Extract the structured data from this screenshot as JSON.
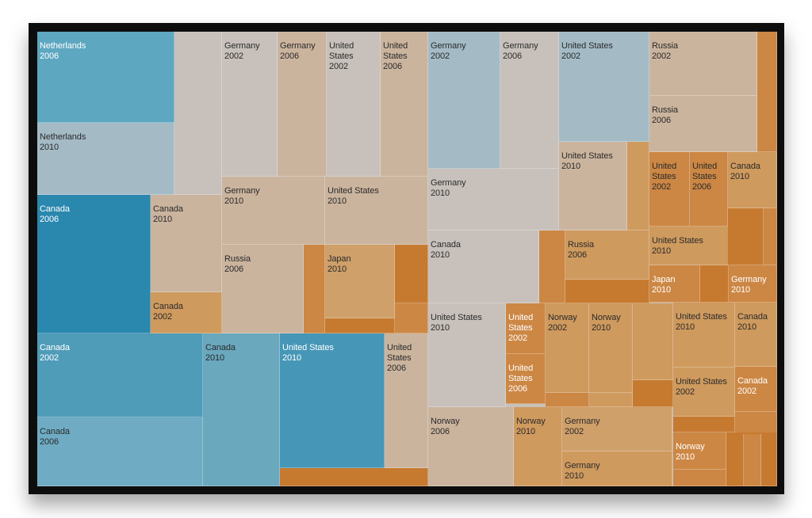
{
  "colors": {
    "frame": "#0d0d0d",
    "blue_dark": "#2a87ad",
    "blue_mid": "#4a9ab9",
    "blue_light": "#a4bbc6",
    "gray": "#c8c1bb",
    "tan": "#cbb49e",
    "orange_light": "#cf9a5e",
    "orange": "#cc8744",
    "orange_dark": "#c67a30"
  },
  "chart_data": {
    "type": "treemap",
    "title": "",
    "cells": [
      {
        "lines": [
          "Netherlands",
          "2006"
        ],
        "color": "#5ea7c0",
        "text": "light"
      },
      {
        "lines": [
          "Netherlands",
          "2010"
        ],
        "color": "#a4bbc6",
        "text": "dark"
      },
      {
        "lines": [
          "Canada",
          "2006"
        ],
        "color": "#2a87ad",
        "text": "light"
      },
      {
        "lines": [
          "Canada",
          "2010"
        ],
        "color": "#cbb49e",
        "text": "dark"
      },
      {
        "lines": [
          "Canada",
          "2002"
        ],
        "color": "#cf9a5e",
        "text": "dark"
      },
      {
        "lines": [
          "Canada",
          "2002"
        ],
        "color": "#4f9cb9",
        "text": "light"
      },
      {
        "lines": [
          "Canada",
          "2006"
        ],
        "color": "#6facc3",
        "text": "dark"
      },
      {
        "lines": [
          "Canada",
          "2010"
        ],
        "color": "#6aa8be",
        "text": "dark"
      },
      {
        "lines": [
          "United States",
          "2010"
        ],
        "color": "#4697b7",
        "text": "light"
      },
      {
        "lines": [
          "United",
          "States",
          "2006"
        ],
        "color": "#cbb49e",
        "text": "dark"
      },
      {
        "lines": [
          "Germany",
          "2002"
        ],
        "color": "#c8c1bb",
        "text": "dark"
      },
      {
        "lines": [
          "Germany",
          "2006"
        ],
        "color": "#cbb49e",
        "text": "dark"
      },
      {
        "lines": [
          "United",
          "States",
          "2002"
        ],
        "color": "#c8c1bb",
        "text": "dark"
      },
      {
        "lines": [
          "United",
          "States",
          "2006"
        ],
        "color": "#cbb49e",
        "text": "dark"
      },
      {
        "lines": [
          "Germany",
          "2010"
        ],
        "color": "#cbb49e",
        "text": "dark"
      },
      {
        "lines": [
          "United States",
          "2010"
        ],
        "color": "#cbb49e",
        "text": "dark"
      },
      {
        "lines": [
          "Russia",
          "2006"
        ],
        "color": "#cbb49e",
        "text": "dark"
      },
      {
        "lines": [
          "Japan",
          "2010"
        ],
        "color": "#cfa06a",
        "text": "dark"
      },
      {
        "lines": [
          "Germany",
          "2002"
        ],
        "color": "#a4bbc6",
        "text": "dark"
      },
      {
        "lines": [
          "Germany",
          "2006"
        ],
        "color": "#c8c1bb",
        "text": "dark"
      },
      {
        "lines": [
          "United States",
          "2002"
        ],
        "color": "#a4bbc6",
        "text": "dark"
      },
      {
        "lines": [
          "Germany",
          "2010"
        ],
        "color": "#c8c1bb",
        "text": "dark"
      },
      {
        "lines": [
          "United States",
          "2010"
        ],
        "color": "#cbb49e",
        "text": "dark"
      },
      {
        "lines": [
          "Canada",
          "2010"
        ],
        "color": "#c8c1bb",
        "text": "dark"
      },
      {
        "lines": [
          "Russia",
          "2006"
        ],
        "color": "#cf9a5e",
        "text": "dark"
      },
      {
        "lines": [
          "United States",
          "2010"
        ],
        "color": "#c8c1bb",
        "text": "dark"
      },
      {
        "lines": [
          "United",
          "States",
          "2002"
        ],
        "color": "#cc8744",
        "text": "light"
      },
      {
        "lines": [
          "United",
          "States",
          "2006"
        ],
        "color": "#cc8744",
        "text": "light"
      },
      {
        "lines": [
          "Norway",
          "2002"
        ],
        "color": "#cf9a5e",
        "text": "dark"
      },
      {
        "lines": [
          "Norway",
          "2010"
        ],
        "color": "#cf9a5e",
        "text": "dark"
      },
      {
        "lines": [
          "Norway",
          "2006"
        ],
        "color": "#cbb49e",
        "text": "dark"
      },
      {
        "lines": [
          "Norway",
          "2010"
        ],
        "color": "#cf9a5e",
        "text": "dark"
      },
      {
        "lines": [
          "Germany",
          "2002"
        ],
        "color": "#cfa06a",
        "text": "dark"
      },
      {
        "lines": [
          "Germany",
          "2010"
        ],
        "color": "#cf9a5e",
        "text": "dark"
      },
      {
        "lines": [
          "Russia",
          "2002"
        ],
        "color": "#cbb49e",
        "text": "dark"
      },
      {
        "lines": [
          "Russia",
          "2006"
        ],
        "color": "#cbb49e",
        "text": "dark"
      },
      {
        "lines": [
          "United",
          "States",
          "2002"
        ],
        "color": "#cc8744",
        "text": "dark"
      },
      {
        "lines": [
          "United",
          "States",
          "2006"
        ],
        "color": "#cc8744",
        "text": "dark"
      },
      {
        "lines": [
          "Canada",
          "2010"
        ],
        "color": "#cf9a5e",
        "text": "dark"
      },
      {
        "lines": [
          "United States",
          "2010"
        ],
        "color": "#cf9a5e",
        "text": "dark"
      },
      {
        "lines": [
          "Japan",
          "2010"
        ],
        "color": "#cc8744",
        "text": "light"
      },
      {
        "lines": [
          "Germany",
          "2010"
        ],
        "color": "#cc8744",
        "text": "light"
      },
      {
        "lines": [
          "United States",
          "2010"
        ],
        "color": "#cf9a5e",
        "text": "dark"
      },
      {
        "lines": [
          "Canada",
          "2010"
        ],
        "color": "#cf9a5e",
        "text": "dark"
      },
      {
        "lines": [
          "United States",
          "2002"
        ],
        "color": "#cf9a5e",
        "text": "dark"
      },
      {
        "lines": [
          "Canada",
          "2002"
        ],
        "color": "#cc8744",
        "text": "light"
      },
      {
        "lines": [
          "Norway",
          "2010"
        ],
        "color": "#cc8744",
        "text": "light"
      },
      {
        "lines": [],
        "color": "#c8c1bb",
        "text": "dark"
      },
      {
        "lines": [],
        "color": "#cc8744",
        "text": "dark"
      },
      {
        "lines": [],
        "color": "#c67a30",
        "text": "dark"
      },
      {
        "lines": [],
        "color": "#c67a30",
        "text": "dark"
      },
      {
        "lines": [],
        "color": "#cc8744",
        "text": "dark"
      },
      {
        "lines": [],
        "color": "#c67a30",
        "text": "dark"
      },
      {
        "lines": [],
        "color": "#cc8744",
        "text": "dark"
      },
      {
        "lines": [],
        "color": "#c67a30",
        "text": "dark"
      },
      {
        "lines": [],
        "color": "#cf9a5e",
        "text": "dark"
      },
      {
        "lines": [],
        "color": "#cc8744",
        "text": "dark"
      },
      {
        "lines": [],
        "color": "#c67a30",
        "text": "dark"
      },
      {
        "lines": [],
        "color": "#cc8744",
        "text": "dark"
      },
      {
        "lines": [],
        "color": "#c67a30",
        "text": "dark"
      },
      {
        "lines": [],
        "color": "#cf9a5e",
        "text": "dark"
      },
      {
        "lines": [],
        "color": "#c67a30",
        "text": "dark"
      },
      {
        "lines": [],
        "color": "#cf9a5e",
        "text": "dark"
      },
      {
        "lines": [],
        "color": "#cc8744",
        "text": "dark"
      },
      {
        "lines": [],
        "color": "#c67a30",
        "text": "dark"
      },
      {
        "lines": [],
        "color": "#cc8744",
        "text": "dark"
      },
      {
        "lines": [],
        "color": "#c67a30",
        "text": "dark"
      },
      {
        "lines": [],
        "color": "#cc8744",
        "text": "dark"
      },
      {
        "lines": [],
        "color": "#c67a30",
        "text": "dark"
      },
      {
        "lines": [],
        "color": "#cc8744",
        "text": "dark"
      },
      {
        "lines": [],
        "color": "#c67a30",
        "text": "dark"
      }
    ]
  }
}
